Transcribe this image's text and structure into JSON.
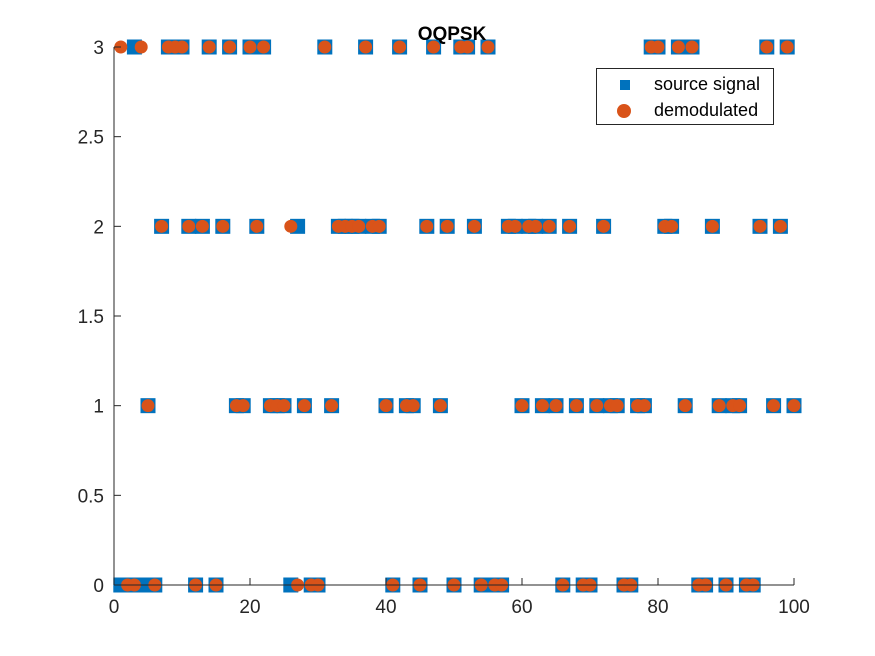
{
  "chart_data": {
    "type": "scatter",
    "title": "OQPSK",
    "xlabel": "",
    "ylabel": "",
    "xlim": [
      0,
      100
    ],
    "ylim": [
      0,
      3
    ],
    "xticks": [
      "0",
      "20",
      "40",
      "60",
      "80",
      "100"
    ],
    "yticks": [
      "0",
      "0.5",
      "1",
      "1.5",
      "2",
      "2.5",
      "3"
    ],
    "grid": false,
    "legend_position": "top-right",
    "x": [
      1,
      2,
      3,
      4,
      5,
      6,
      7,
      8,
      9,
      10,
      11,
      12,
      13,
      14,
      15,
      16,
      17,
      18,
      19,
      20,
      21,
      22,
      23,
      24,
      25,
      26,
      27,
      28,
      29,
      30,
      31,
      32,
      33,
      34,
      35,
      36,
      37,
      38,
      39,
      40,
      41,
      42,
      43,
      44,
      45,
      46,
      47,
      48,
      49,
      50,
      51,
      52,
      53,
      54,
      55,
      56,
      57,
      58,
      59,
      60,
      61,
      62,
      63,
      64,
      65,
      66,
      67,
      68,
      69,
      70,
      71,
      72,
      73,
      74,
      75,
      76,
      77,
      78,
      79,
      80,
      81,
      82,
      83,
      84,
      85,
      86,
      87,
      88,
      89,
      90,
      91,
      92,
      93,
      94,
      95,
      96,
      97,
      98,
      99,
      100
    ],
    "series": [
      {
        "name": "source signal",
        "marker": "square",
        "color": "#0072BD",
        "values": [
          0,
          0,
          3,
          0,
          1,
          0,
          2,
          3,
          3,
          3,
          2,
          0,
          2,
          3,
          0,
          2,
          3,
          1,
          1,
          3,
          2,
          3,
          1,
          1,
          1,
          0,
          2,
          1,
          0,
          0,
          3,
          1,
          2,
          2,
          2,
          2,
          3,
          2,
          2,
          1,
          0,
          3,
          1,
          1,
          0,
          2,
          3,
          1,
          2,
          0,
          3,
          3,
          2,
          0,
          3,
          0,
          0,
          2,
          2,
          1,
          2,
          2,
          1,
          2,
          1,
          0,
          2,
          1,
          0,
          0,
          1,
          2,
          1,
          1,
          0,
          0,
          1,
          1,
          3,
          3,
          2,
          2,
          3,
          1,
          3,
          0,
          0,
          2,
          1,
          0,
          1,
          1,
          0,
          0,
          2,
          3,
          1,
          2,
          3,
          1
        ]
      },
      {
        "name": "demodulated",
        "marker": "circle",
        "color": "#D95319",
        "values": [
          3,
          0,
          0,
          3,
          1,
          0,
          2,
          3,
          3,
          3,
          2,
          0,
          2,
          3,
          0,
          2,
          3,
          1,
          1,
          3,
          2,
          3,
          1,
          1,
          1,
          2,
          0,
          1,
          0,
          0,
          3,
          1,
          2,
          2,
          2,
          2,
          3,
          2,
          2,
          1,
          0,
          3,
          1,
          1,
          0,
          2,
          3,
          1,
          2,
          0,
          3,
          3,
          2,
          0,
          3,
          0,
          0,
          2,
          2,
          1,
          2,
          2,
          1,
          2,
          1,
          0,
          2,
          1,
          0,
          0,
          1,
          2,
          1,
          1,
          0,
          0,
          1,
          1,
          3,
          3,
          2,
          2,
          3,
          1,
          3,
          0,
          0,
          2,
          1,
          0,
          1,
          1,
          0,
          0,
          2,
          3,
          1,
          2,
          3,
          1
        ]
      }
    ]
  }
}
